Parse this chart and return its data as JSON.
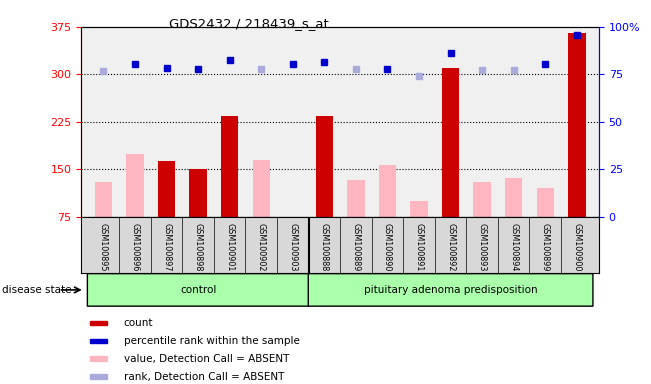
{
  "title": "GDS2432 / 218439_s_at",
  "samples": [
    "GSM100895",
    "GSM100896",
    "GSM100897",
    "GSM100898",
    "GSM100901",
    "GSM100902",
    "GSM100903",
    "GSM100888",
    "GSM100889",
    "GSM100890",
    "GSM100891",
    "GSM100892",
    "GSM100893",
    "GSM100894",
    "GSM100899",
    "GSM100900"
  ],
  "groups": [
    {
      "label": "control",
      "start": 0,
      "end": 7
    },
    {
      "label": "pituitary adenoma predisposition",
      "start": 7,
      "end": 16
    }
  ],
  "bar_values": [
    130,
    175,
    163,
    150,
    235,
    165,
    0,
    235,
    133,
    157,
    100,
    310,
    130,
    137,
    120,
    365
  ],
  "bar_absent": [
    1,
    1,
    0,
    0,
    0,
    1,
    1,
    0,
    1,
    1,
    1,
    0,
    1,
    1,
    1,
    0
  ],
  "dark_blue_y": [
    305,
    316,
    310,
    308,
    322,
    308,
    316,
    320,
    308,
    308,
    0,
    333,
    307,
    307,
    317,
    362
  ],
  "light_blue_y": [
    305,
    316,
    310,
    308,
    313,
    308,
    316,
    308,
    308,
    308,
    297,
    308,
    307,
    307,
    308,
    357
  ],
  "dot_absent": [
    1,
    0,
    0,
    0,
    0,
    1,
    0,
    0,
    1,
    0,
    1,
    0,
    1,
    1,
    0,
    0
  ],
  "ylim_left": [
    75,
    375
  ],
  "ylim_right": [
    0,
    100
  ],
  "yticks_left": [
    75,
    150,
    225,
    300,
    375
  ],
  "yticks_right": [
    0,
    25,
    50,
    75,
    100
  ],
  "ytick_labels_right": [
    "0",
    "25",
    "50",
    "75",
    "100%"
  ],
  "hlines": [
    150,
    225,
    300
  ],
  "disease_state_label": "disease state",
  "group_color": "#aaffaa",
  "plot_bg": "#f0f0f0",
  "bar_red": "#cc0000",
  "bar_pink": "#ffb6c1",
  "dot_dark_blue": "#0000cc",
  "dot_light_blue": "#aaaadd",
  "legend_items": [
    {
      "label": "count",
      "color": "#cc0000"
    },
    {
      "label": "percentile rank within the sample",
      "color": "#0000cc"
    },
    {
      "label": "value, Detection Call = ABSENT",
      "color": "#ffb6c1"
    },
    {
      "label": "rank, Detection Call = ABSENT",
      "color": "#aaaadd"
    }
  ]
}
